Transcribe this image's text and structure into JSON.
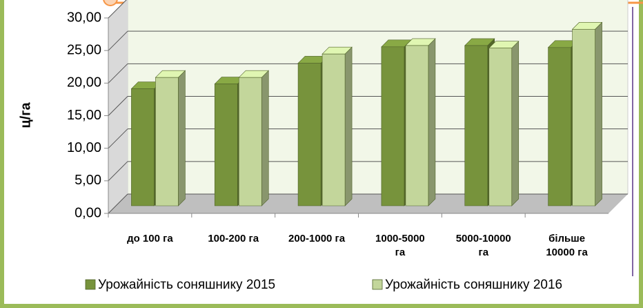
{
  "chart_data": {
    "type": "bar3d",
    "y_label": "ц/га",
    "categories": [
      "до 100 га",
      "100-200 га",
      "200-1000 га",
      "1000-5000 га",
      "5000-10000 га",
      "більше 10000 га"
    ],
    "series": [
      {
        "name": "Урожайність соняшнику 2015",
        "color": "#77933c",
        "values": [
          17.96,
          18.7,
          21.9,
          24.4,
          24.6,
          24.3
        ]
      },
      {
        "name": "Урожайність соняшнику 2016",
        "color": "#c3d69b",
        "values": [
          19.7,
          19.7,
          23.3,
          24.6,
          24.2,
          27.1
        ]
      }
    ],
    "ylim": [
      0,
      30
    ],
    "yticks": [
      {
        "value": 0,
        "label": "0,00"
      },
      {
        "value": 5,
        "label": "5,00"
      },
      {
        "value": 10,
        "label": "10,00"
      },
      {
        "value": 15,
        "label": "15,00"
      },
      {
        "value": 20,
        "label": "20,00"
      },
      {
        "value": 25,
        "label": "25,00"
      },
      {
        "value": 30,
        "label": "30,00"
      }
    ],
    "grid": true
  }
}
